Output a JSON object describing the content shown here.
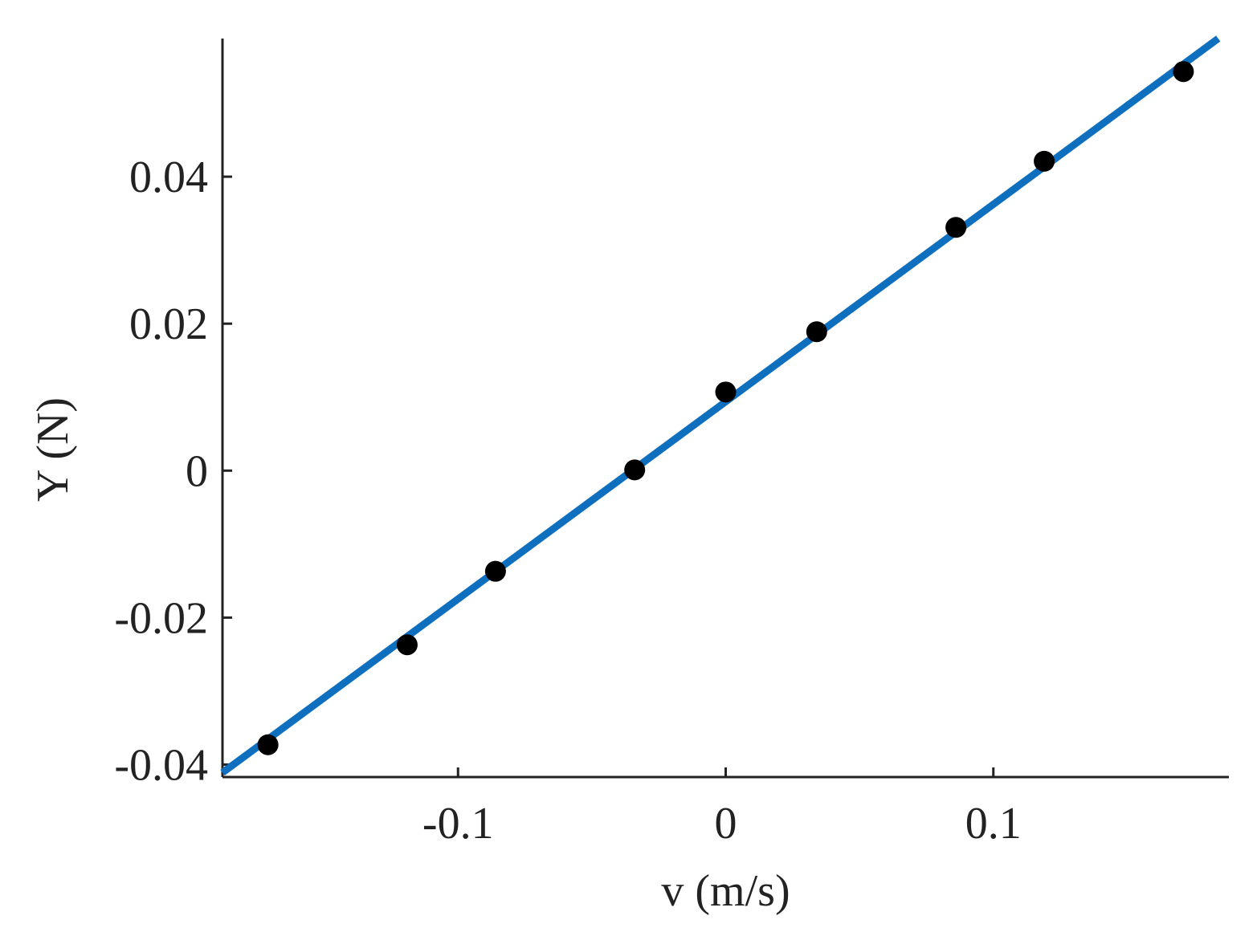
{
  "chart_data": {
    "type": "scatter",
    "title": "",
    "xlabel": "v (m/s)",
    "ylabel": "Y (N)",
    "xlim": [
      -0.188,
      0.188
    ],
    "ylim": [
      -0.0417,
      0.0588
    ],
    "x_ticks": [
      -0.1,
      0,
      0.1
    ],
    "x_tick_labels": [
      "-0.1",
      "0",
      "0.1"
    ],
    "y_ticks": [
      -0.04,
      -0.02,
      0,
      0.02,
      0.04
    ],
    "y_tick_labels": [
      "-0.04",
      "-0.02",
      "0",
      "0.02",
      "0.04"
    ],
    "grid": false,
    "series": [
      {
        "kind": "points",
        "color": "#000000",
        "x": [
          -0.171,
          -0.119,
          -0.086,
          -0.034,
          0.0,
          0.034,
          0.086,
          0.119,
          0.171
        ],
        "y": [
          -0.0373,
          -0.0237,
          -0.0137,
          0.0001,
          0.0107,
          0.0189,
          0.0331,
          0.0421,
          0.0543
        ]
      },
      {
        "kind": "line",
        "color": "#0F6FBF",
        "x": [
          -0.188,
          0.184
        ],
        "y": [
          -0.0411,
          0.0588
        ]
      }
    ]
  }
}
